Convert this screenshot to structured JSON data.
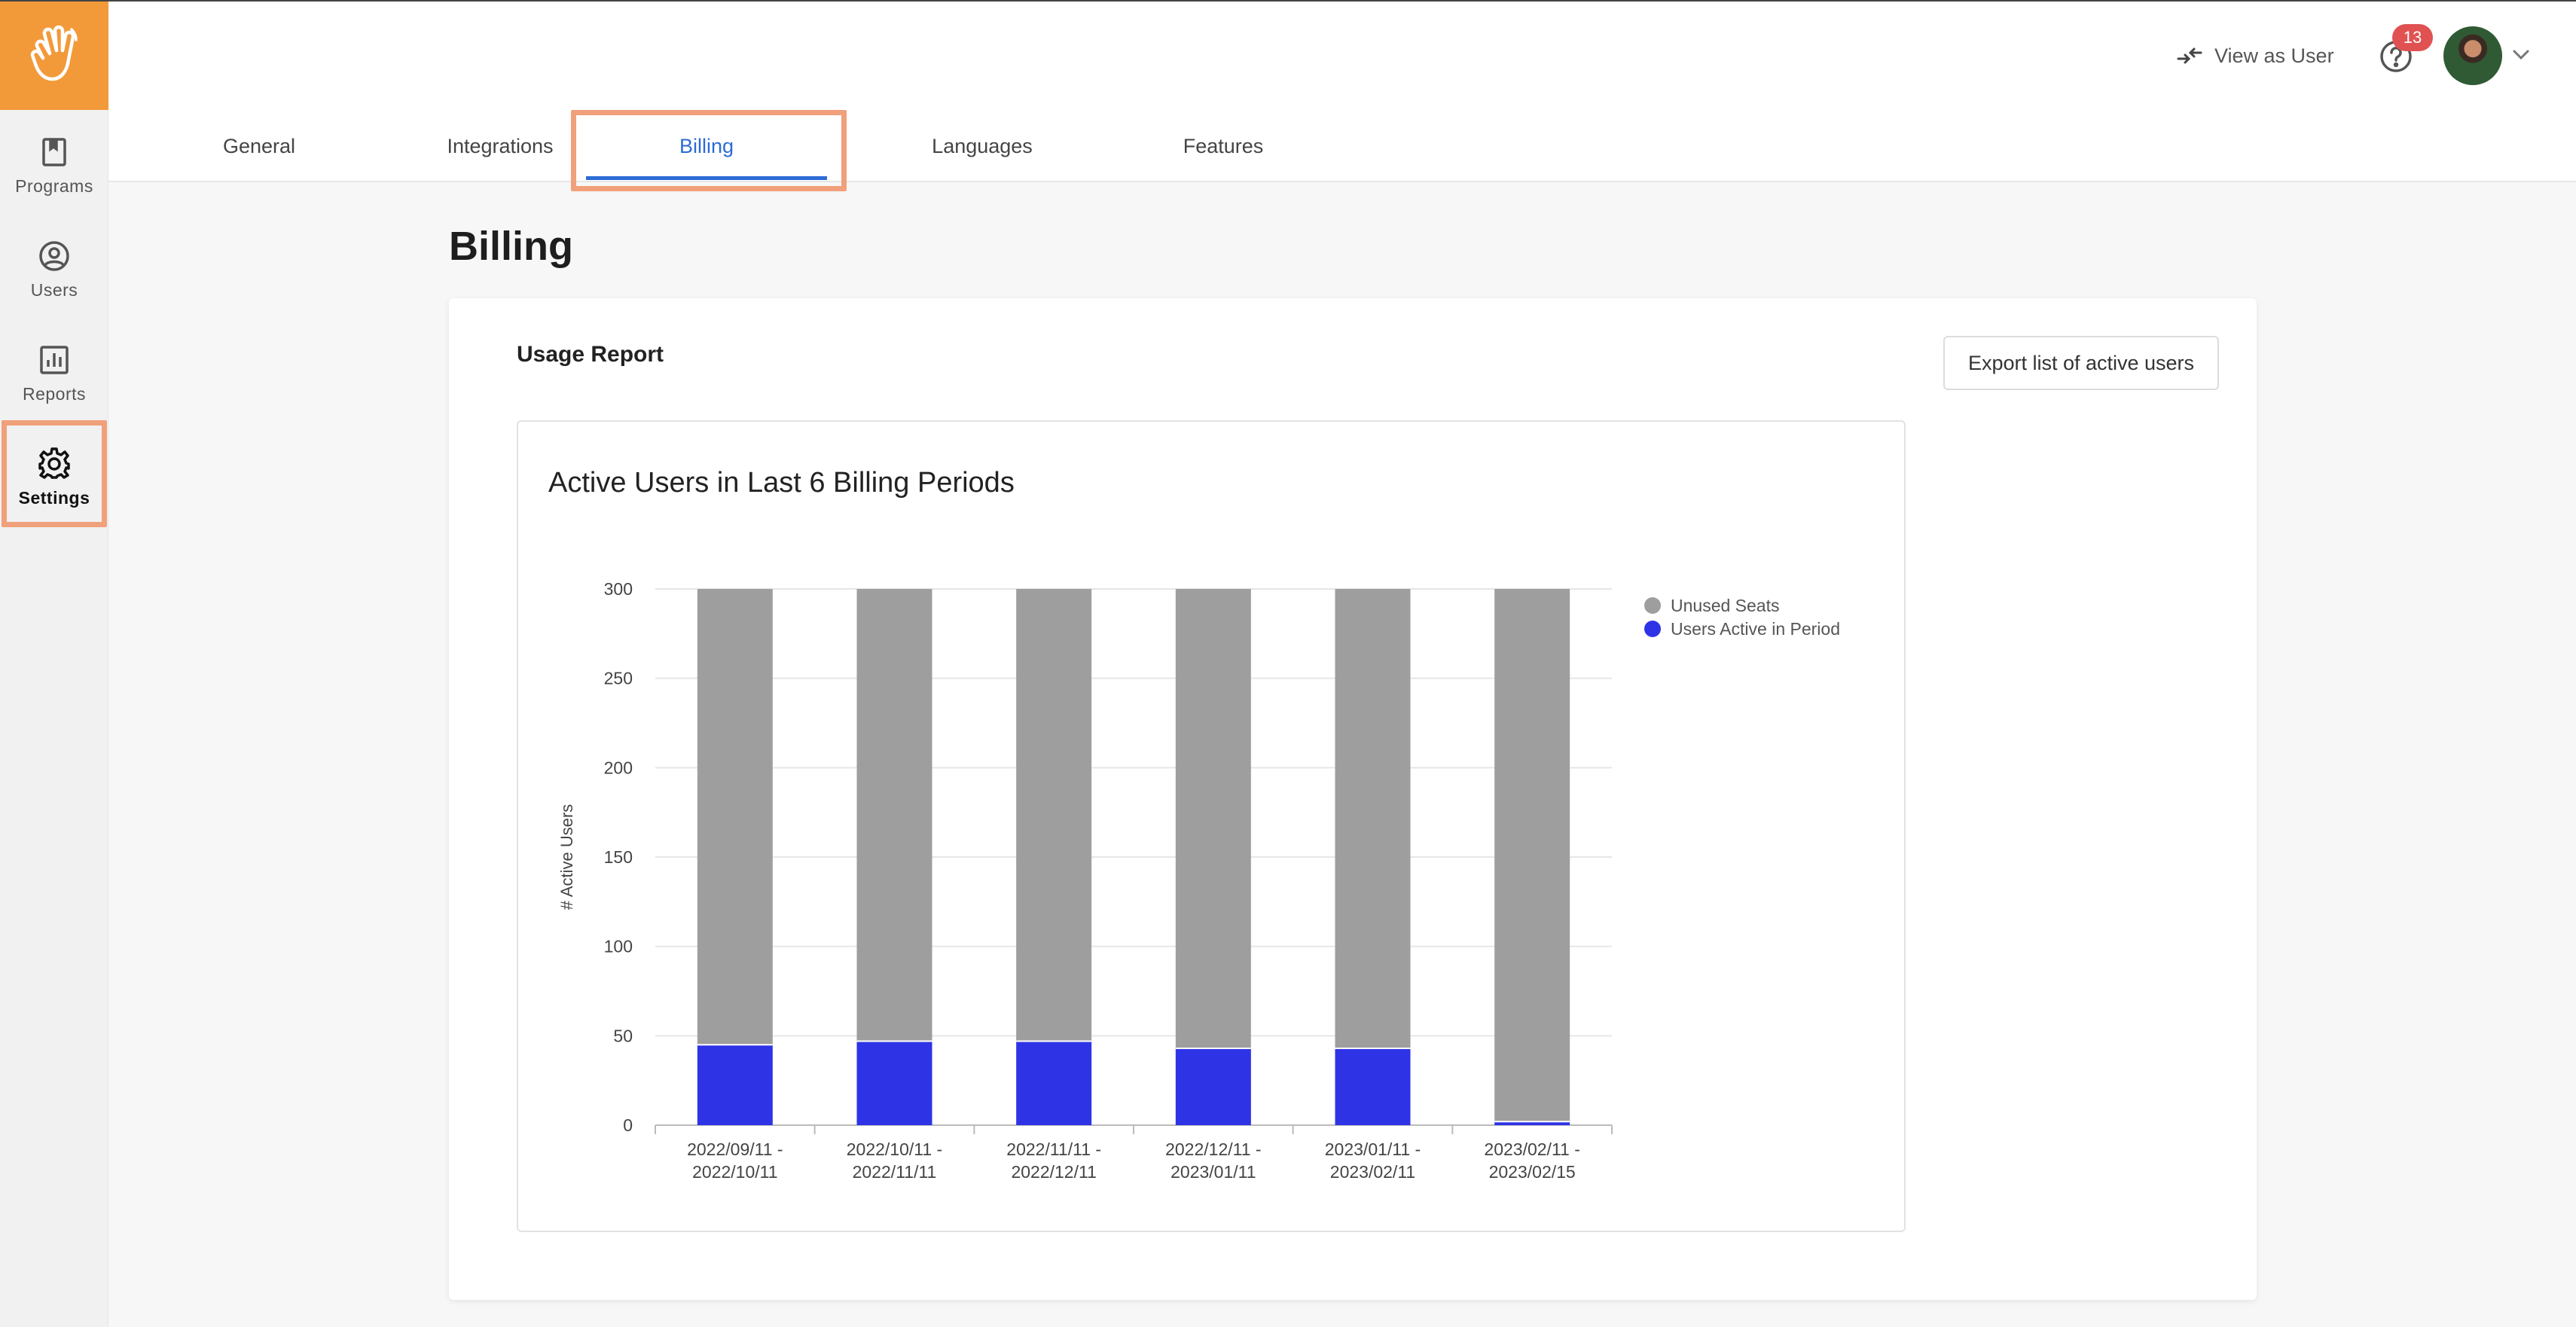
{
  "sidebar": {
    "items": [
      {
        "label": "Programs"
      },
      {
        "label": "Users"
      },
      {
        "label": "Reports"
      },
      {
        "label": "Settings"
      }
    ]
  },
  "header": {
    "view_as_user": "View as User",
    "notification_count": "13"
  },
  "tabs": [
    {
      "label": "General"
    },
    {
      "label": "Integrations"
    },
    {
      "label": "Billing"
    },
    {
      "label": "Languages"
    },
    {
      "label": "Features"
    }
  ],
  "page": {
    "title": "Billing",
    "card_title": "Usage Report",
    "export_label": "Export list of active users"
  },
  "colors": {
    "accent": "#f29a3a",
    "highlight": "#f0a07a",
    "tab_active": "#2c6bd6",
    "unused": "#9e9e9e",
    "active_users": "#2f33e6"
  },
  "chart_data": {
    "type": "bar",
    "stacked": true,
    "title": "Active Users in Last 6 Billing Periods",
    "ylabel": "# Active Users",
    "xlabel": "",
    "ylim": [
      0,
      300
    ],
    "yticks": [
      0,
      50,
      100,
      150,
      200,
      250,
      300
    ],
    "categories": [
      [
        "2022/09/11 -",
        "2022/10/11"
      ],
      [
        "2022/10/11 -",
        "2022/11/11"
      ],
      [
        "2022/11/11 -",
        "2022/12/11"
      ],
      [
        "2022/12/11 -",
        "2023/01/11"
      ],
      [
        "2023/01/11 -",
        "2023/02/11"
      ],
      [
        "2023/02/11 -",
        "2023/02/15"
      ]
    ],
    "series": [
      {
        "name": "Users Active in Period",
        "color": "#2f33e6",
        "values": [
          45,
          47,
          47,
          43,
          43,
          2
        ]
      },
      {
        "name": "Unused Seats",
        "color": "#9e9e9e",
        "values": [
          255,
          253,
          253,
          257,
          257,
          298
        ]
      }
    ],
    "legend_order": [
      "Unused Seats",
      "Users Active in Period"
    ],
    "legend_position": "top-right",
    "grid": true
  }
}
